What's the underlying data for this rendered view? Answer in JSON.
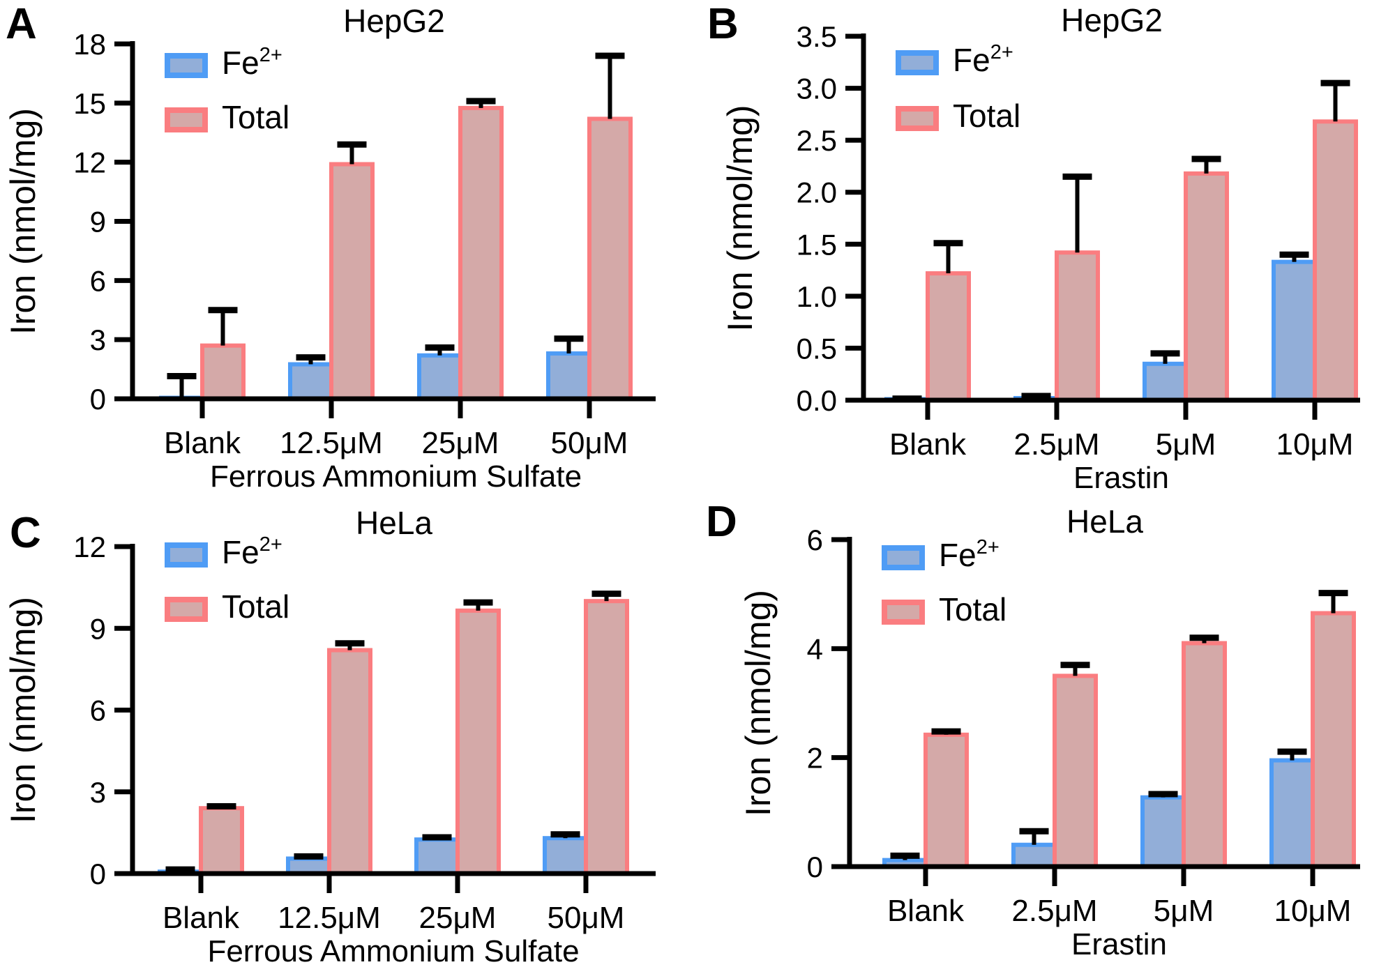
{
  "figure": {
    "background": "#ffffff",
    "colors": {
      "fe_fill": "#92aed8",
      "fe_border": "#4f9cf5",
      "total_fill": "#d4a9a8",
      "total_border": "#fa7d80",
      "axis": "#000000",
      "error_bar": "#000000",
      "text": "#000000"
    }
  },
  "chart_data": [
    {
      "type": "bar",
      "panel": "A",
      "title": "HepG2",
      "xlabel": "Ferrous Ammonium Sulfate",
      "ylabel": "Iron (nmol/mg)",
      "categories": [
        "Blank",
        "12.5μM",
        "25μM",
        "50μM"
      ],
      "series": [
        {
          "name": "Fe2+",
          "legend_base": "Fe",
          "legend_super": "2+",
          "color_key": "fe",
          "values": [
            0.05,
            1.75,
            2.2,
            2.3
          ],
          "errors": [
            1.1,
            0.35,
            0.4,
            0.75
          ]
        },
        {
          "name": "Total",
          "legend_base": "Total",
          "legend_super": "",
          "color_key": "total",
          "values": [
            2.7,
            11.9,
            14.75,
            14.2
          ],
          "errors": [
            1.8,
            1.0,
            0.35,
            3.2
          ]
        }
      ],
      "ylim": [
        0,
        18
      ],
      "yticks": [
        0,
        3,
        6,
        9,
        12,
        15,
        18
      ],
      "ytick_decimals": 0,
      "legend_position": "top-left",
      "grid": false
    },
    {
      "type": "bar",
      "panel": "B",
      "title": "HepG2",
      "xlabel": "Erastin",
      "ylabel": "Iron (nmol/mg)",
      "categories": [
        "Blank",
        "2.5μM",
        "5μM",
        "10μM"
      ],
      "series": [
        {
          "name": "Fe2+",
          "legend_base": "Fe",
          "legend_super": "2+",
          "color_key": "fe",
          "values": [
            0.01,
            0.02,
            0.35,
            1.33
          ],
          "errors": [
            0.005,
            0.02,
            0.1,
            0.07
          ]
        },
        {
          "name": "Total",
          "legend_base": "Total",
          "legend_super": "",
          "color_key": "total",
          "values": [
            1.22,
            1.42,
            2.18,
            2.68
          ],
          "errors": [
            0.29,
            0.73,
            0.14,
            0.37
          ]
        }
      ],
      "ylim": [
        0,
        3.5
      ],
      "yticks": [
        0.0,
        0.5,
        1.0,
        1.5,
        2.0,
        2.5,
        3.0,
        3.5
      ],
      "ytick_decimals": 1,
      "legend_position": "top-left",
      "grid": false
    },
    {
      "type": "bar",
      "panel": "C",
      "title": "HeLa",
      "xlabel": "Ferrous Ammonium Sulfate",
      "ylabel": "Iron (nmol/mg)",
      "categories": [
        "Blank",
        "12.5μM",
        "25μM",
        "50μM"
      ],
      "series": [
        {
          "name": "Fe2+",
          "legend_base": "Fe",
          "legend_super": "2+",
          "color_key": "fe",
          "values": [
            0.07,
            0.55,
            1.25,
            1.3
          ],
          "errors": [
            0.08,
            0.08,
            0.08,
            0.14
          ]
        },
        {
          "name": "Total",
          "legend_base": "Total",
          "legend_super": "",
          "color_key": "total",
          "values": [
            2.4,
            8.2,
            9.65,
            10.0
          ],
          "errors": [
            0.07,
            0.25,
            0.3,
            0.27
          ]
        }
      ],
      "ylim": [
        0,
        12
      ],
      "yticks": [
        0,
        3,
        6,
        9,
        12
      ],
      "ytick_decimals": 0,
      "legend_position": "top-left",
      "grid": false
    },
    {
      "type": "bar",
      "panel": "D",
      "title": "HeLa",
      "xlabel": "Erastin",
      "ylabel": "Iron (nmol/mg)",
      "categories": [
        "Blank",
        "2.5μM",
        "5μM",
        "10μM"
      ],
      "series": [
        {
          "name": "Fe2+",
          "legend_base": "Fe",
          "legend_super": "2+",
          "color_key": "fe",
          "values": [
            0.12,
            0.4,
            1.27,
            1.95
          ],
          "errors": [
            0.08,
            0.25,
            0.06,
            0.16
          ]
        },
        {
          "name": "Total",
          "legend_base": "Total",
          "legend_super": "",
          "color_key": "total",
          "values": [
            2.42,
            3.5,
            4.1,
            4.65
          ],
          "errors": [
            0.06,
            0.2,
            0.1,
            0.37
          ]
        }
      ],
      "ylim": [
        0,
        6
      ],
      "yticks": [
        0,
        2,
        4,
        6
      ],
      "ytick_decimals": 0,
      "legend_position": "top-left",
      "grid": false
    }
  ]
}
